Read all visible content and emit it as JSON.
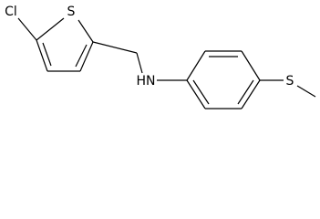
{
  "atoms": [
    {
      "label": "Cl"
    },
    {
      "label": "S"
    },
    {
      "label": "HN"
    },
    {
      "label": "S"
    }
  ]
}
